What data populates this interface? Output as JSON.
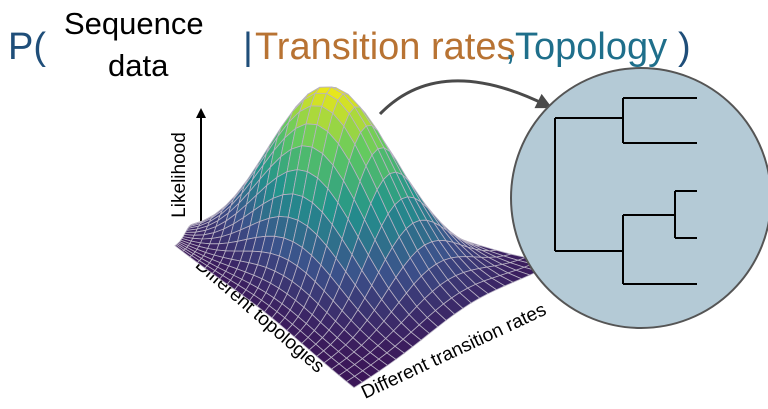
{
  "formula": {
    "p_open": "P(",
    "sequence_line1": "Sequence",
    "sequence_line2": "data",
    "bar": "|",
    "transition_rates": "Transition rates",
    "comma": ",",
    "topology": "Topology",
    "p_close": ")"
  },
  "axes": {
    "likelihood": "Likelihood",
    "topologies": "Different topologies",
    "transition_rates": "Different transition rates"
  },
  "colors": {
    "p_color": "#1f4e79",
    "sequence_color": "#000000",
    "transition_rates_color": "#b87333",
    "topology_color": "#1f6f8b",
    "circle_fill": "#b4cad6",
    "surface_low": "#3b1557",
    "surface_high": "#f2e816",
    "grid_line": "#b9b2c4",
    "tree_line": "#000000"
  }
}
